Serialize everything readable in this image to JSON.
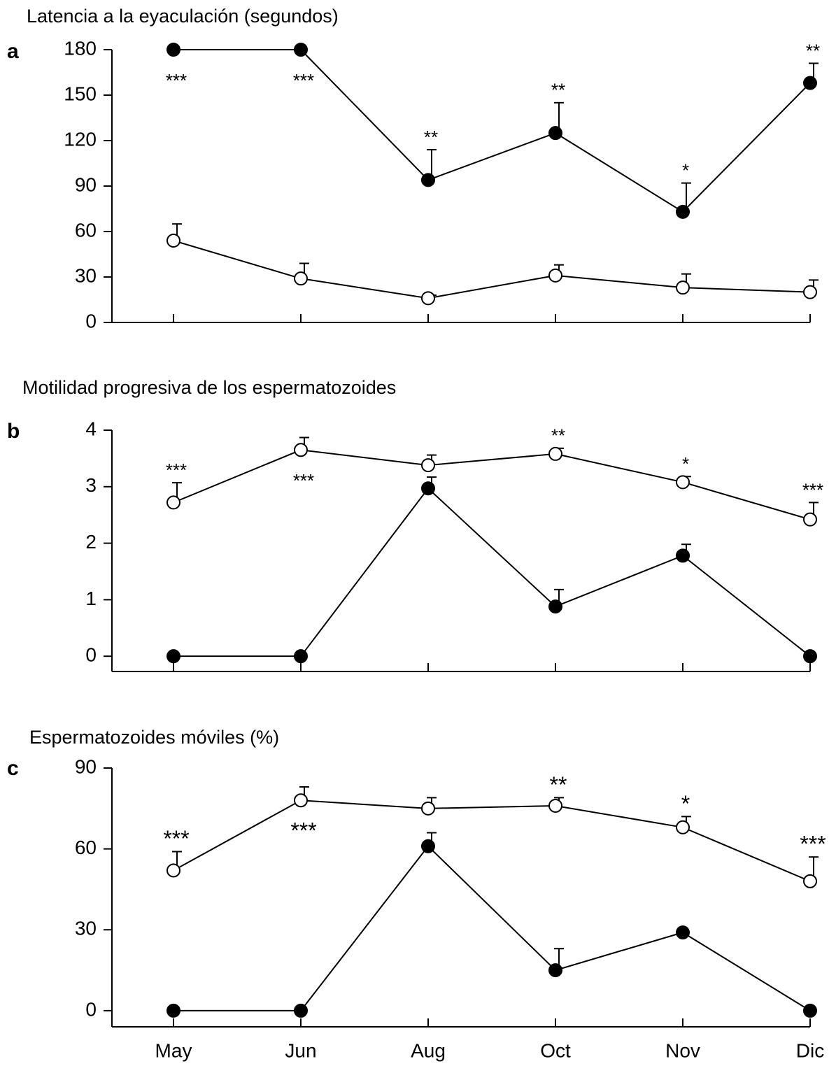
{
  "chart_data": [
    {
      "type": "line",
      "panel": "a",
      "title": "Latencia a la eyaculación (segundos)",
      "ylim": [
        0,
        180
      ],
      "yticks": [
        0,
        30,
        60,
        90,
        120,
        150,
        180
      ],
      "series": [
        {
          "color": "#000000",
          "values": [
            180,
            180,
            94,
            125,
            73,
            158
          ],
          "errors": [
            0,
            0,
            20,
            20,
            19,
            13
          ]
        },
        {
          "color": "#ffffff",
          "values": [
            54,
            29,
            16,
            31,
            23,
            20
          ],
          "errors": [
            11,
            10,
            2,
            7,
            9,
            8
          ]
        }
      ],
      "annotations": [
        {
          "text": "***",
          "placement": "below"
        },
        {
          "text": "***",
          "placement": "below"
        },
        {
          "text": "**",
          "placement": "above"
        },
        {
          "text": "**",
          "placement": "above"
        },
        {
          "text": "*",
          "placement": "above"
        },
        {
          "text": "**",
          "placement": "above"
        }
      ]
    },
    {
      "type": "line",
      "panel": "b",
      "title": "Motilidad progresiva de los espermatozoides",
      "ylim": [
        -0.27,
        4
      ],
      "yticks": [
        0,
        1,
        2,
        3,
        4
      ],
      "series": [
        {
          "color": "#ffffff",
          "values": [
            2.72,
            3.65,
            3.38,
            3.58,
            3.08,
            2.42
          ],
          "errors": [
            0.35,
            0.22,
            0.18,
            0.1,
            0.1,
            0.3
          ]
        },
        {
          "color": "#000000",
          "values": [
            0,
            0,
            2.97,
            0.88,
            1.78,
            0
          ],
          "errors": [
            0,
            0,
            0.2,
            0.3,
            0.2,
            0
          ]
        }
      ],
      "annotations": [
        {
          "text": "***",
          "placement": "above"
        },
        {
          "text": "***",
          "placement": "below"
        },
        null,
        {
          "text": "**",
          "placement": "above"
        },
        {
          "text": "*",
          "placement": "above"
        },
        {
          "text": "***",
          "placement": "above"
        }
      ]
    },
    {
      "type": "line",
      "panel": "c",
      "title": "Espermatozoides móviles (%)",
      "categories": [
        "May",
        "Jun",
        "Aug",
        "Oct",
        "Nov",
        "Dic"
      ],
      "ylim": [
        -6,
        90
      ],
      "yticks": [
        0,
        30,
        60,
        90
      ],
      "series": [
        {
          "color": "#ffffff",
          "values": [
            52,
            78,
            75,
            76,
            68,
            48
          ],
          "errors": [
            7,
            5,
            4,
            3,
            4,
            9
          ]
        },
        {
          "color": "#000000",
          "values": [
            0,
            0,
            61,
            15,
            29,
            0
          ],
          "errors": [
            0,
            0,
            5,
            8,
            0,
            0
          ]
        }
      ],
      "annotations": [
        {
          "text": "***",
          "placement": "above"
        },
        {
          "text": "***",
          "placement": "below"
        },
        null,
        {
          "text": "**",
          "placement": "above"
        },
        {
          "text": "*",
          "placement": "above"
        },
        {
          "text": "***",
          "placement": "above"
        }
      ]
    }
  ]
}
